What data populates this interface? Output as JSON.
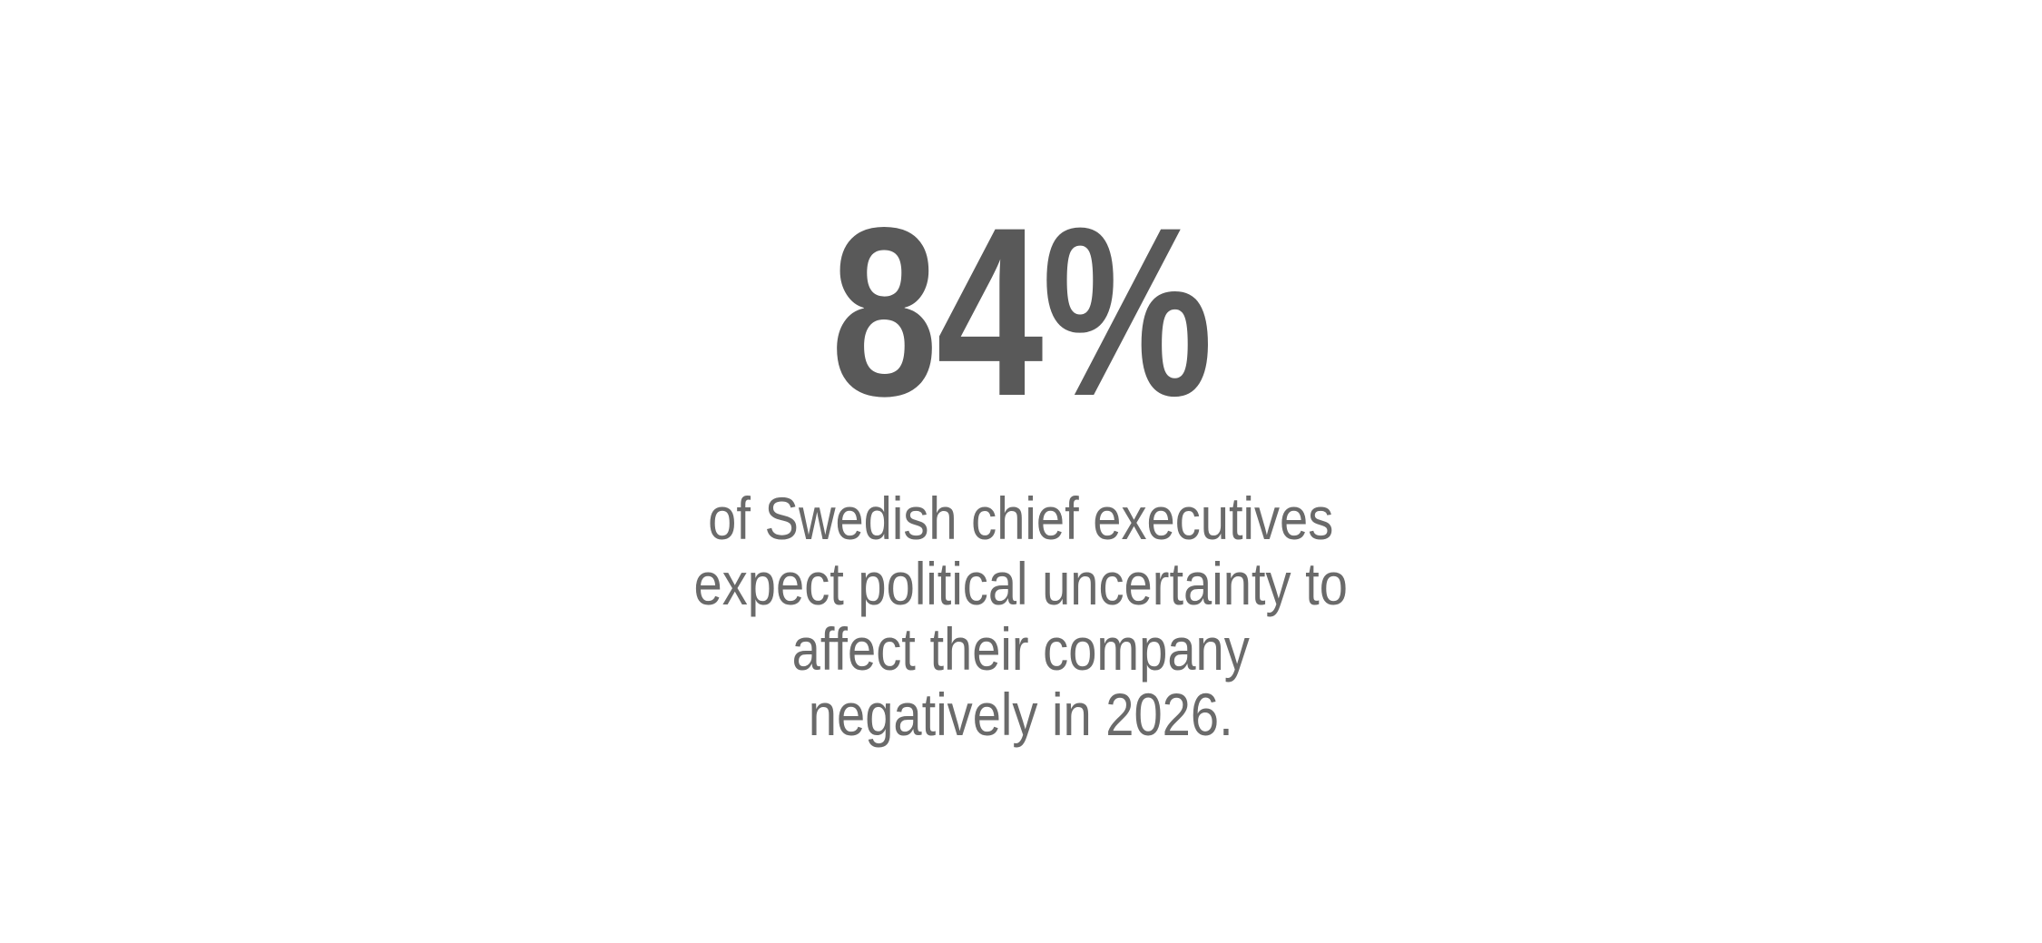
{
  "stat": {
    "value": "84%",
    "description_lines": [
      "of Swedish chief executives",
      "expect political uncertainty to",
      "affect their company",
      "negatively in 2026."
    ],
    "description": "of Swedish chief executives expect political uncertainty to affect their company negatively in 2026."
  },
  "colors": {
    "background": "#ffffff",
    "stat_value": "#595959",
    "stat_description": "#6a6a6a"
  },
  "chart_data": {
    "type": "table",
    "title": "84%",
    "values": [
      84
    ],
    "unit": "%",
    "annotations": [
      "of Swedish chief executives expect political uncertainty to affect their company negatively in 2026."
    ],
    "layout_hints": {
      "style": "big-number statistic, centered on white background",
      "grid": "off",
      "legend": "none"
    }
  }
}
